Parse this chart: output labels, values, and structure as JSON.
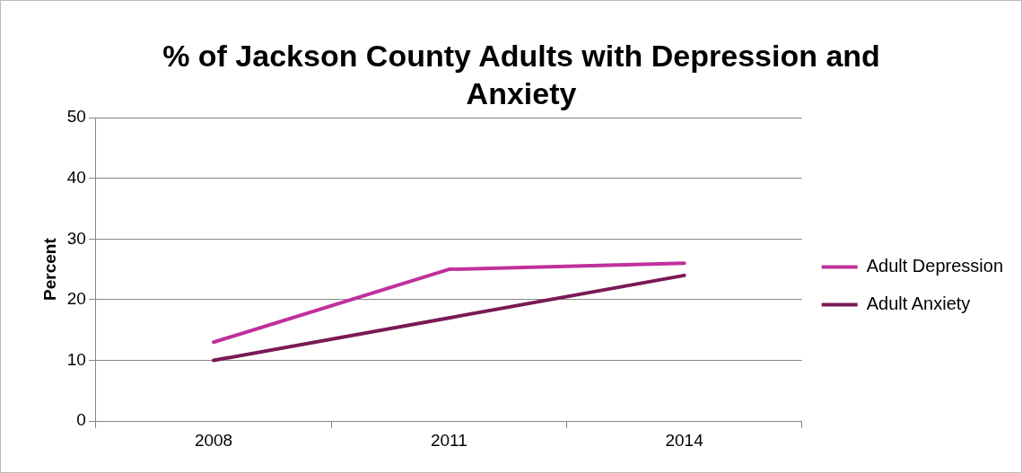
{
  "chart_data": {
    "type": "line",
    "title": "% of Jackson County Adults with Depression and Anxiety",
    "ylabel": "Percent",
    "categories": [
      "2008",
      "2011",
      "2014"
    ],
    "series": [
      {
        "name": "Adult Depression",
        "color": "#c0309c",
        "values": [
          13,
          25,
          26
        ]
      },
      {
        "name": "Adult Anxiety",
        "color": "#7a1a55",
        "values": [
          10,
          17,
          24
        ]
      }
    ],
    "ylim": [
      0,
      50
    ],
    "yticks": [
      0,
      10,
      20,
      30,
      40,
      50
    ],
    "grid": "y",
    "legend": "right",
    "marker": "none",
    "line_style": "solid"
  }
}
